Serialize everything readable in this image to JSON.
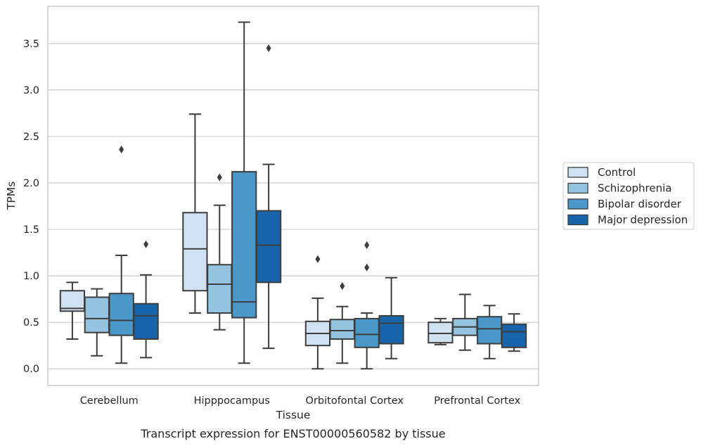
{
  "chart_data": {
    "type": "box",
    "caption": "Transcript expression for ENST00000560582 by tissue",
    "xlabel": "Tissue",
    "ylabel": "TPMs",
    "ylim": [
      -0.18,
      3.9
    ],
    "yticks": [
      0.0,
      0.5,
      1.0,
      1.5,
      2.0,
      2.5,
      3.0,
      3.5
    ],
    "ytick_labels": [
      "0.0",
      "0.5",
      "1.0",
      "1.5",
      "2.0",
      "2.5",
      "3.0",
      "3.5"
    ],
    "grid": "horizontal",
    "legend_placement": "right, outside plot",
    "categories": [
      "Cerebellum",
      "Hipppocampus",
      "Orbitofontal Cortex",
      "Prefrontal Cortex"
    ],
    "series": [
      {
        "name": "Control",
        "color": "#d0e1f2",
        "boxes": [
          {
            "whislo": 0.32,
            "q1": 0.62,
            "med": 0.65,
            "q3": 0.84,
            "whishi": 0.93,
            "fliers": []
          },
          {
            "whislo": 0.6,
            "q1": 0.84,
            "med": 1.29,
            "q3": 1.68,
            "whishi": 2.74,
            "fliers": []
          },
          {
            "whislo": 0.0,
            "q1": 0.25,
            "med": 0.38,
            "q3": 0.51,
            "whishi": 0.76,
            "fliers": [
              1.18
            ]
          },
          {
            "whislo": 0.26,
            "q1": 0.28,
            "med": 0.38,
            "q3": 0.5,
            "whishi": 0.54,
            "fliers": []
          }
        ]
      },
      {
        "name": "Schizophrenia",
        "color": "#94c4df",
        "boxes": [
          {
            "whislo": 0.14,
            "q1": 0.39,
            "med": 0.54,
            "q3": 0.77,
            "whishi": 0.86,
            "fliers": []
          },
          {
            "whislo": 0.42,
            "q1": 0.6,
            "med": 0.91,
            "q3": 1.12,
            "whishi": 1.76,
            "fliers": [
              2.06
            ]
          },
          {
            "whislo": 0.06,
            "q1": 0.32,
            "med": 0.41,
            "q3": 0.53,
            "whishi": 0.67,
            "fliers": [
              0.89
            ]
          },
          {
            "whislo": 0.2,
            "q1": 0.36,
            "med": 0.45,
            "q3": 0.54,
            "whishi": 0.8,
            "fliers": []
          }
        ]
      },
      {
        "name": "Bipolar disorder",
        "color": "#4a98c9",
        "boxes": [
          {
            "whislo": 0.06,
            "q1": 0.36,
            "med": 0.52,
            "q3": 0.81,
            "whishi": 1.22,
            "fliers": [
              2.36
            ]
          },
          {
            "whislo": 0.06,
            "q1": 0.55,
            "med": 0.72,
            "q3": 2.12,
            "whishi": 3.73,
            "fliers": []
          },
          {
            "whislo": 0.0,
            "q1": 0.23,
            "med": 0.37,
            "q3": 0.54,
            "whishi": 0.6,
            "fliers": [
              1.09,
              1.33
            ]
          },
          {
            "whislo": 0.11,
            "q1": 0.27,
            "med": 0.43,
            "q3": 0.56,
            "whishi": 0.68,
            "fliers": []
          }
        ]
      },
      {
        "name": "Major depression",
        "color": "#1764ab",
        "boxes": [
          {
            "whislo": 0.12,
            "q1": 0.32,
            "med": 0.57,
            "q3": 0.7,
            "whishi": 1.01,
            "fliers": [
              1.34
            ]
          },
          {
            "whislo": 0.22,
            "q1": 0.93,
            "med": 1.33,
            "q3": 1.7,
            "whishi": 2.2,
            "fliers": [
              3.45
            ]
          },
          {
            "whislo": 0.11,
            "q1": 0.27,
            "med": 0.49,
            "q3": 0.57,
            "whishi": 0.98,
            "fliers": []
          },
          {
            "whislo": 0.19,
            "q1": 0.23,
            "med": 0.4,
            "q3": 0.48,
            "whishi": 0.59,
            "fliers": []
          }
        ]
      }
    ]
  }
}
